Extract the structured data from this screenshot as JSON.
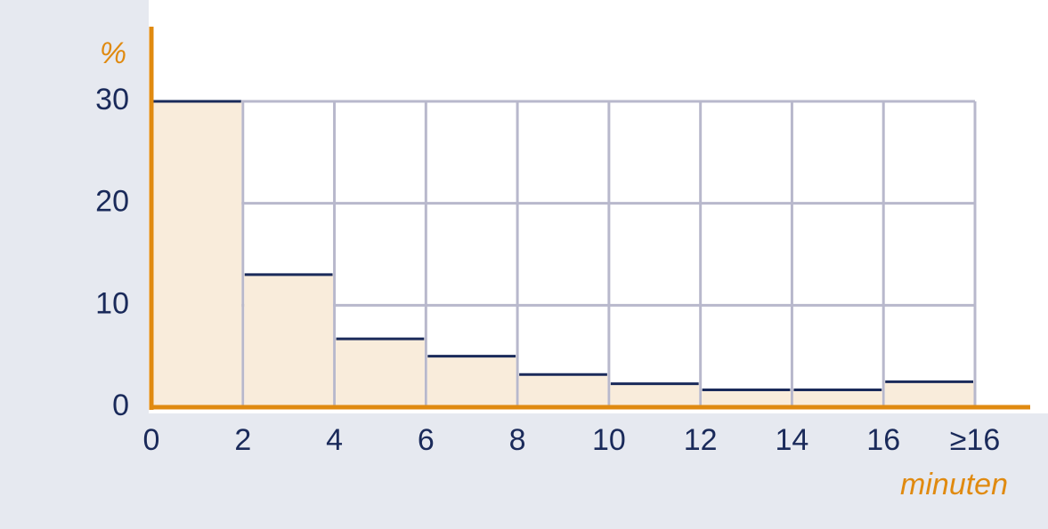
{
  "chart_data": {
    "type": "histogram",
    "y_label": "%",
    "x_label": "minuten",
    "bins": [
      0,
      2,
      4,
      6,
      8,
      10,
      12,
      14,
      16,
      18
    ],
    "values": [
      30,
      13,
      6.7,
      5,
      3.2,
      2.3,
      1.7,
      1.7,
      2.5
    ],
    "color": "#f9ecdb",
    "edge_color": "#1a2a5a",
    "axis_color": "#e08a10",
    "grid": true,
    "xlim": [
      0,
      18
    ],
    "ylim": [
      0,
      30
    ],
    "xticks": [
      0,
      2,
      4,
      6,
      8,
      10,
      12,
      14,
      16,
      {
        "value": 18,
        "label": "≥16"
      }
    ],
    "yticks": [
      0,
      10,
      20,
      30
    ]
  }
}
